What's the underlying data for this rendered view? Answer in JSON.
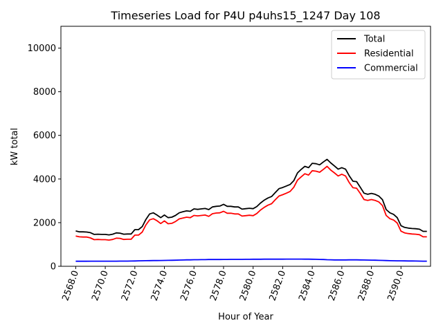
{
  "chart_data": {
    "type": "line",
    "title": "Timeseries Load for P4U p4uhs15_1247  Day 108",
    "xlabel": "Hour of Year",
    "ylabel": "kW total",
    "xlim": [
      2567,
      2592
    ],
    "ylim": [
      0,
      11000
    ],
    "xticks": [
      2568,
      2570,
      2572,
      2574,
      2576,
      2578,
      2580,
      2582,
      2584,
      2586,
      2588,
      2590
    ],
    "xtick_labels": [
      "2568.0",
      "2570.0",
      "2572.0",
      "2574.0",
      "2576.0",
      "2578.0",
      "2580.0",
      "2582.0",
      "2584.0",
      "2586.0",
      "2588.0",
      "2590.0"
    ],
    "yticks": [
      0,
      2000,
      4000,
      6000,
      8000,
      10000
    ],
    "ytick_labels": [
      "0",
      "2000",
      "4000",
      "6000",
      "8000",
      "10000"
    ],
    "legend_position": "top-right",
    "x": [
      2568.0,
      2568.25,
      2568.5,
      2568.75,
      2569.0,
      2569.25,
      2569.5,
      2569.75,
      2570.0,
      2570.25,
      2570.5,
      2570.75,
      2571.0,
      2571.25,
      2571.5,
      2571.75,
      2572.0,
      2572.25,
      2572.5,
      2572.75,
      2573.0,
      2573.25,
      2573.5,
      2573.75,
      2574.0,
      2574.25,
      2574.5,
      2574.75,
      2575.0,
      2575.25,
      2575.5,
      2575.75,
      2576.0,
      2576.25,
      2576.5,
      2576.75,
      2577.0,
      2577.25,
      2577.5,
      2577.75,
      2578.0,
      2578.25,
      2578.5,
      2578.75,
      2579.0,
      2579.25,
      2579.5,
      2579.75,
      2580.0,
      2580.25,
      2580.5,
      2580.75,
      2581.0,
      2581.25,
      2581.5,
      2581.75,
      2582.0,
      2582.25,
      2582.5,
      2582.75,
      2583.0,
      2583.25,
      2583.5,
      2583.75,
      2584.0,
      2584.25,
      2584.5,
      2584.75,
      2585.0,
      2585.25,
      2585.5,
      2585.75,
      2586.0,
      2586.25,
      2586.5,
      2586.75,
      2587.0,
      2587.25,
      2587.5,
      2587.75,
      2588.0,
      2588.25,
      2588.5,
      2588.75,
      2589.0,
      2589.25,
      2589.5,
      2589.75,
      2590.0,
      2590.25,
      2590.5,
      2590.75,
      2591.0,
      2591.25,
      2591.5,
      2591.75
    ],
    "series": [
      {
        "name": "Total",
        "color": "#000000",
        "values": [
          1620,
          1580,
          1580,
          1570,
          1540,
          1460,
          1470,
          1460,
          1460,
          1440,
          1470,
          1530,
          1520,
          1470,
          1480,
          1480,
          1680,
          1680,
          1820,
          2150,
          2400,
          2450,
          2350,
          2230,
          2350,
          2230,
          2250,
          2330,
          2450,
          2500,
          2540,
          2520,
          2630,
          2610,
          2630,
          2650,
          2600,
          2720,
          2750,
          2760,
          2840,
          2750,
          2750,
          2720,
          2720,
          2620,
          2640,
          2660,
          2640,
          2740,
          2900,
          3030,
          3130,
          3200,
          3380,
          3560,
          3610,
          3680,
          3750,
          3920,
          4280,
          4440,
          4580,
          4520,
          4720,
          4700,
          4650,
          4780,
          4900,
          4740,
          4600,
          4450,
          4520,
          4450,
          4150,
          3900,
          3880,
          3620,
          3350,
          3300,
          3340,
          3300,
          3220,
          3050,
          2600,
          2450,
          2380,
          2230,
          1860,
          1780,
          1750,
          1730,
          1720,
          1700,
          1600,
          1600
        ]
      },
      {
        "name": "Residential",
        "color": "#ff0000",
        "values": [
          1390,
          1350,
          1340,
          1340,
          1300,
          1220,
          1230,
          1220,
          1220,
          1200,
          1230,
          1290,
          1280,
          1230,
          1240,
          1240,
          1430,
          1430,
          1570,
          1900,
          2130,
          2180,
          2090,
          1960,
          2080,
          1950,
          1970,
          2050,
          2170,
          2210,
          2250,
          2230,
          2330,
          2310,
          2330,
          2350,
          2290,
          2410,
          2440,
          2450,
          2520,
          2430,
          2430,
          2400,
          2400,
          2300,
          2320,
          2340,
          2320,
          2420,
          2580,
          2700,
          2800,
          2870,
          3050,
          3220,
          3280,
          3350,
          3430,
          3620,
          3950,
          4100,
          4240,
          4180,
          4380,
          4360,
          4310,
          4440,
          4580,
          4410,
          4280,
          4140,
          4220,
          4140,
          3840,
          3600,
          3580,
          3340,
          3060,
          3020,
          3060,
          3020,
          2950,
          2780,
          2330,
          2180,
          2120,
          1980,
          1610,
          1530,
          1500,
          1480,
          1470,
          1450,
          1350,
          1350
        ]
      },
      {
        "name": "Commercial",
        "color": "#0000ff",
        "values": [
          230,
          230,
          235,
          230,
          235,
          235,
          235,
          235,
          235,
          235,
          235,
          235,
          238,
          238,
          238,
          240,
          245,
          250,
          255,
          258,
          260,
          262,
          262,
          265,
          270,
          272,
          275,
          280,
          285,
          290,
          295,
          295,
          300,
          300,
          305,
          305,
          310,
          310,
          312,
          312,
          315,
          315,
          318,
          318,
          318,
          318,
          320,
          320,
          322,
          322,
          322,
          325,
          325,
          325,
          325,
          328,
          328,
          330,
          330,
          330,
          330,
          330,
          328,
          325,
          322,
          320,
          315,
          310,
          302,
          298,
          292,
          292,
          292,
          293,
          294,
          294,
          294,
          292,
          290,
          285,
          282,
          278,
          273,
          268,
          263,
          258,
          255,
          252,
          250,
          248,
          245,
          243,
          240,
          238,
          236,
          235
        ]
      }
    ]
  }
}
